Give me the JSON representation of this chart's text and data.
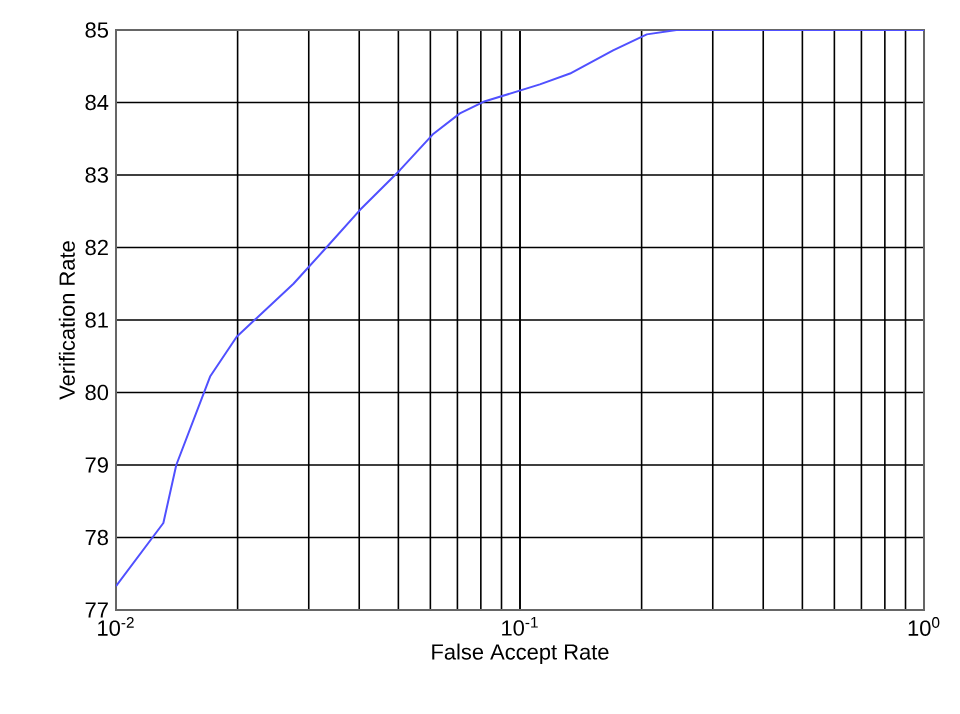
{
  "chart_data": {
    "type": "line",
    "xlabel": "False Accept Rate",
    "ylabel": "Verification Rate",
    "log": "x",
    "grid": true,
    "marker": "none",
    "line_style": "solid",
    "xlim": [
      0.01,
      1
    ],
    "ylim": [
      77,
      85
    ],
    "xticks": [
      {
        "value": 0.01,
        "label": "10$^{-2}$"
      },
      {
        "value": 0.1,
        "label": "10$^{-1}$"
      },
      {
        "value": 1,
        "label": "10$^{0}$"
      }
    ],
    "yticks": [
      77,
      78,
      79,
      80,
      81,
      82,
      83,
      84,
      85
    ],
    "series": [
      {
        "color": "#5050ff",
        "x": [
          0.01,
          0.0131,
          0.0141,
          0.0171,
          0.0199,
          0.0275,
          0.0333,
          0.0402,
          0.0505,
          0.0611,
          0.071,
          0.0812,
          0.112,
          0.133,
          0.17,
          0.206,
          0.244,
          1
        ],
        "values": [
          77.33,
          78.2,
          79.0,
          80.22,
          80.77,
          81.5,
          82.01,
          82.52,
          83.07,
          83.57,
          83.85,
          84.01,
          84.25,
          84.4,
          84.72,
          84.94,
          85.0,
          85.0
        ]
      }
    ]
  }
}
